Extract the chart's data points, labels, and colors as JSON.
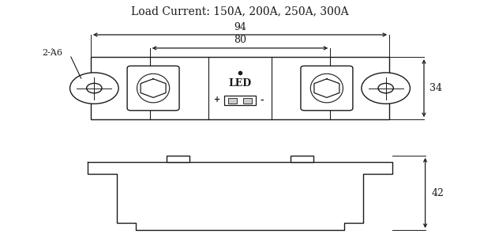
{
  "title": "Load Current: 150A, 200A, 250A, 300A",
  "title_fontsize": 10,
  "line_color": "#1a1a1a",
  "bg_color": "#ffffff",
  "dim_94_label": "94",
  "dim_80_label": "80",
  "dim_34_label": "34",
  "dim_42_label": "42",
  "label_2phi6": "2-Ά6",
  "label_LED": "LED"
}
